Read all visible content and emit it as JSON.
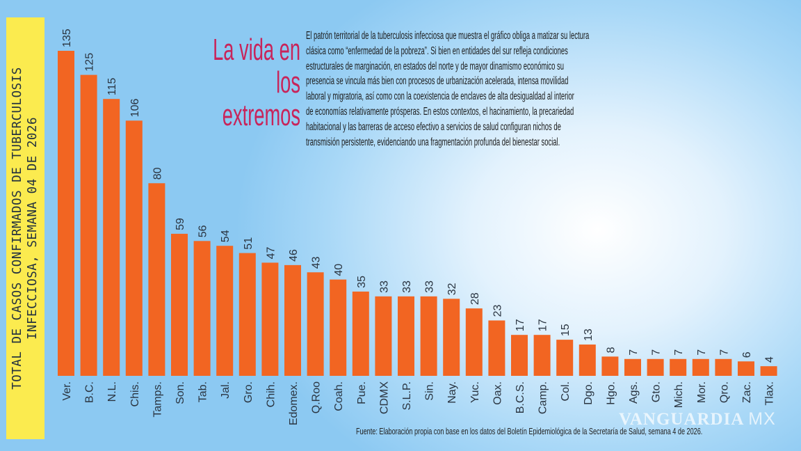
{
  "chart_data": {
    "type": "bar",
    "title": "La vida en los extremos",
    "ylabel": "TOTAL DE CASOS CONFIRMADOS DE TUBERCULOSIS INFECCIOSA, SEMANA 04 DE 2026",
    "xlabel": "",
    "categories": [
      "Ver.",
      "B.C.",
      "N.L.",
      "Chis.",
      "Tamps.",
      "Son.",
      "Tab.",
      "Jal.",
      "Gro.",
      "Chih.",
      "Edomex.",
      "Q.Roo",
      "Coah.",
      "Pue.",
      "CDMX",
      "S.L.P.",
      "Sin.",
      "Nay.",
      "Yuc.",
      "Oax.",
      "B.C.S.",
      "Camp.",
      "Col.",
      "Dgo.",
      "Hgo.",
      "Ags.",
      "Gto.",
      "Mich.",
      "Mor.",
      "Qro.",
      "Zac.",
      "Tlax."
    ],
    "values": [
      135,
      125,
      115,
      106,
      80,
      59,
      56,
      54,
      51,
      47,
      46,
      43,
      40,
      35,
      33,
      33,
      33,
      32,
      28,
      23,
      17,
      17,
      15,
      13,
      8,
      7,
      7,
      7,
      7,
      7,
      6,
      4
    ],
    "ylim": [
      0,
      135
    ],
    "grid": false,
    "bar_color": "#f26522",
    "data_labels": true
  },
  "heading_lines": [
    "La vida en los",
    "extremos"
  ],
  "paragraph_lines": [
    "El patrón territorial de la tuberculosis infecciosa que muestra el gráfico obliga a matizar su lectura",
    "clásica como “enfermedad de la pobreza”. Si bien en entidades del sur refleja condiciones",
    "estructurales de marginación, en estados del norte y de mayor dinamismo económico su",
    "presencia se vincula más bien con procesos de urbanización acelerada, intensa movilidad",
    "laboral y migratoria, así como con la coexistencia de enclaves de alta desigualdad al interior",
    "de economías relativamente prósperas. En estos contextos, el hacinamiento, la precariedad",
    "habitacional y las barreras de acceso efectivo a servicios de salud configuran nichos de",
    "transmisión persistente, evidenciando una fragmentación profunda del bienestar social."
  ],
  "ylabel_lines": [
    "TOTAL DE CASOS CONFIRMADOS DE TUBERCULOSIS",
    "INFECCIOSA, SEMANA 04 DE 2026"
  ],
  "source": "Fuente: Elaboración propia con base en los datos del Boletín Epidemiológica de la Secretaría de Salud, semana 4 de 2026.",
  "watermark": "VANGUARDIA MX"
}
